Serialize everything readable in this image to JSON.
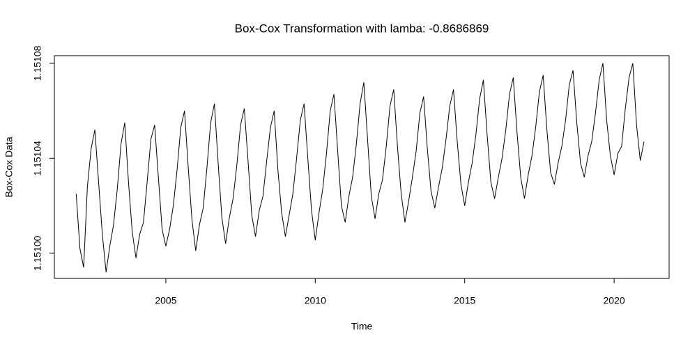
{
  "chart_data": {
    "type": "line",
    "title": "Box-Cox Transformation with lamba: -0.8686869",
    "xlabel": "Time",
    "ylabel": "Box-Cox Data",
    "color": "#000000",
    "xlim": [
      2001.27,
      2021.84
    ],
    "ylim": [
      1.1509894,
      1.1510832
    ],
    "xticks": [
      2005,
      2010,
      2015,
      2020
    ],
    "yticks": [
      {
        "value": 1.151,
        "label": "1.15100"
      },
      {
        "value": 1.15104,
        "label": "1.15104"
      },
      {
        "value": 1.15108,
        "label": "1.15108"
      }
    ],
    "x": [
      2002,
      2002.125,
      2002.25,
      2002.375,
      2002.5,
      2002.625,
      2002.75,
      2002.875,
      2003,
      2003.125,
      2003.25,
      2003.375,
      2003.5,
      2003.625,
      2003.75,
      2003.875,
      2004,
      2004.125,
      2004.25,
      2004.375,
      2004.5,
      2004.625,
      2004.75,
      2004.875,
      2005,
      2005.125,
      2005.25,
      2005.375,
      2005.5,
      2005.625,
      2005.75,
      2005.875,
      2006,
      2006.125,
      2006.25,
      2006.375,
      2006.5,
      2006.625,
      2006.75,
      2006.875,
      2007,
      2007.125,
      2007.25,
      2007.375,
      2007.5,
      2007.625,
      2007.75,
      2007.875,
      2008,
      2008.125,
      2008.25,
      2008.375,
      2008.5,
      2008.625,
      2008.75,
      2008.875,
      2009,
      2009.125,
      2009.25,
      2009.375,
      2009.5,
      2009.625,
      2009.75,
      2009.875,
      2010,
      2010.125,
      2010.25,
      2010.375,
      2010.5,
      2010.625,
      2010.75,
      2010.875,
      2011,
      2011.125,
      2011.25,
      2011.375,
      2011.5,
      2011.625,
      2011.75,
      2011.875,
      2012,
      2012.125,
      2012.25,
      2012.375,
      2012.5,
      2012.625,
      2012.75,
      2012.875,
      2013,
      2013.125,
      2013.25,
      2013.375,
      2013.5,
      2013.625,
      2013.75,
      2013.875,
      2014,
      2014.125,
      2014.25,
      2014.375,
      2014.5,
      2014.625,
      2014.75,
      2014.875,
      2015,
      2015.125,
      2015.25,
      2015.375,
      2015.5,
      2015.625,
      2015.75,
      2015.875,
      2016,
      2016.125,
      2016.25,
      2016.375,
      2016.5,
      2016.625,
      2016.75,
      2016.875,
      2017,
      2017.125,
      2017.25,
      2017.375,
      2017.5,
      2017.625,
      2017.75,
      2017.875,
      2018,
      2018.125,
      2018.25,
      2018.375,
      2018.5,
      2018.625,
      2018.75,
      2018.875,
      2019,
      2019.125,
      2019.25,
      2019.375,
      2019.5,
      2019.625,
      2019.75,
      2019.875,
      2020,
      2020.125,
      2020.25,
      2020.375,
      2020.5,
      2020.625,
      2020.75,
      2020.875,
      2021
    ],
    "values": [
      1.151025,
      1.151002,
      1.150994,
      1.151028,
      1.151044,
      1.151052,
      1.15103,
      1.151008,
      1.150992,
      1.151003,
      1.151012,
      1.151027,
      1.151046,
      1.151055,
      1.15103,
      1.151009,
      1.150998,
      1.151008,
      1.151013,
      1.15103,
      1.151048,
      1.151054,
      1.151032,
      1.15101,
      1.151003,
      1.15101,
      1.15102,
      1.151035,
      1.151053,
      1.15106,
      1.151036,
      1.151014,
      1.151001,
      1.151012,
      1.151019,
      1.151036,
      1.151055,
      1.151063,
      1.151038,
      1.151015,
      1.151004,
      1.151015,
      1.151023,
      1.151037,
      1.151054,
      1.151061,
      1.151039,
      1.151016,
      1.151007,
      1.151018,
      1.151024,
      1.151039,
      1.151053,
      1.15106,
      1.151035,
      1.151017,
      1.151007,
      1.151016,
      1.151025,
      1.15104,
      1.151056,
      1.151063,
      1.15104,
      1.151018,
      1.1510055,
      1.151017,
      1.151027,
      1.151042,
      1.15106,
      1.151067,
      1.151043,
      1.15102,
      1.151013,
      1.151024,
      1.151032,
      1.151046,
      1.151063,
      1.151072,
      1.151048,
      1.151024,
      1.1510145,
      1.151025,
      1.151031,
      1.151045,
      1.151062,
      1.151069,
      1.151045,
      1.151025,
      1.151013,
      1.151022,
      1.151032,
      1.151043,
      1.151059,
      1.151066,
      1.151044,
      1.151026,
      1.151019,
      1.151028,
      1.151036,
      1.151048,
      1.151062,
      1.151069,
      1.151047,
      1.151029,
      1.15102,
      1.15103,
      1.151038,
      1.15105,
      1.151065,
      1.151073,
      1.15105,
      1.15103,
      1.151023,
      1.151032,
      1.15104,
      1.151052,
      1.151067,
      1.151074,
      1.151051,
      1.151032,
      1.151023,
      1.151033,
      1.151041,
      1.151053,
      1.151068,
      1.151075,
      1.151052,
      1.151034,
      1.151029,
      1.151038,
      1.151045,
      1.151056,
      1.151071,
      1.151077,
      1.151055,
      1.151038,
      1.151032,
      1.151041,
      1.151047,
      1.151059,
      1.151073,
      1.15108,
      1.151056,
      1.151041,
      1.151033,
      1.151042,
      1.151045,
      1.151061,
      1.151074,
      1.15108,
      1.151054,
      1.151039,
      1.151047
    ]
  }
}
